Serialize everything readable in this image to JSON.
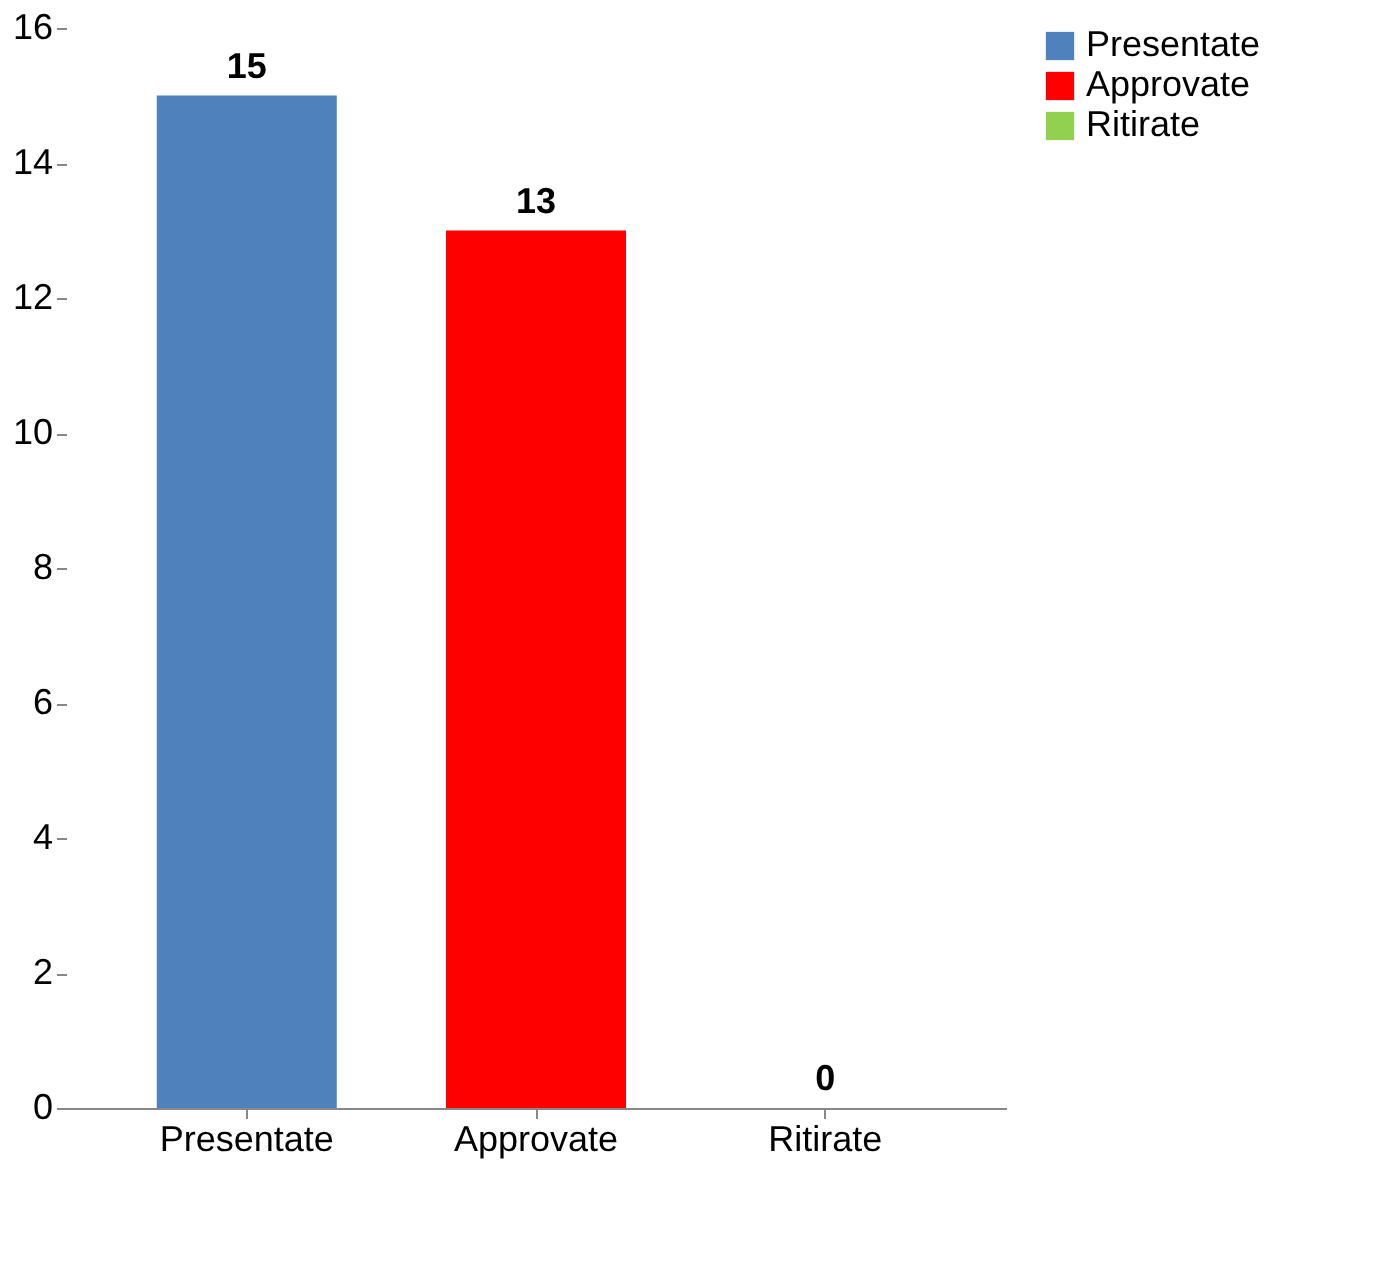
{
  "chart_data": {
    "type": "bar",
    "categories": [
      "Presentate",
      "Approvate",
      "Ritirate"
    ],
    "series": [
      {
        "name": "Presentate",
        "color": "#4f81bd",
        "values": [
          15,
          null,
          null
        ]
      },
      {
        "name": "Approvate",
        "color": "#ff0000",
        "values": [
          null,
          13,
          null
        ]
      },
      {
        "name": "Ritirate",
        "color": "#92d050",
        "values": [
          null,
          null,
          0
        ]
      }
    ],
    "ylim": [
      0,
      16
    ],
    "yticks": [
      0,
      2,
      4,
      6,
      8,
      10,
      12,
      14,
      16
    ],
    "data_labels": true,
    "legend": "top right",
    "grid": false
  }
}
